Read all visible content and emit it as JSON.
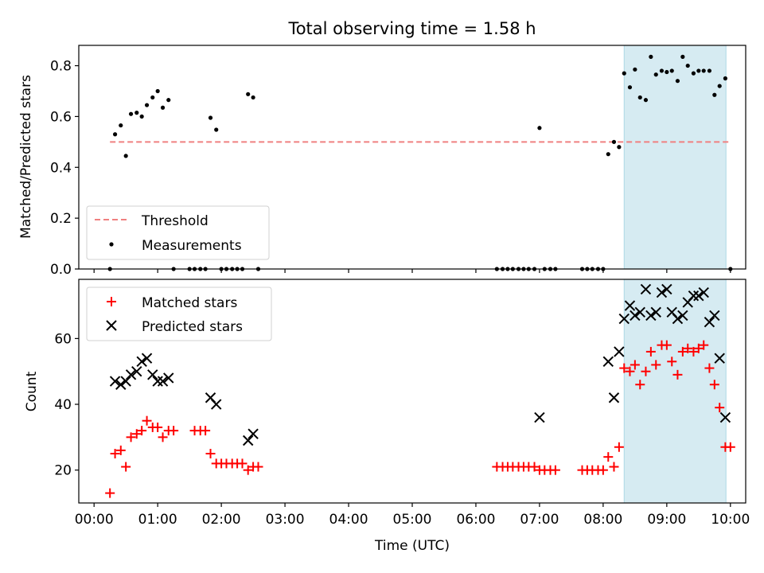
{
  "figure": {
    "title": "Total observing time = 1.58 h"
  },
  "chart_data": [
    {
      "type": "scatter",
      "panel": "top",
      "ylabel": "Matched/Predicted stars",
      "xlim_hours": [
        -0.24,
        10.24
      ],
      "ylim": [
        0,
        0.88
      ],
      "yticks": [
        0.0,
        0.2,
        0.4,
        0.6,
        0.8
      ],
      "ytick_labels": [
        "0.0",
        "0.2",
        "0.4",
        "0.6",
        "0.8"
      ],
      "grid": false,
      "legend_position": "lower-left",
      "shaded_span_hours": [
        8.33,
        9.93
      ],
      "shaded_color": "#add8e6",
      "threshold": {
        "name": "Threshold",
        "y": 0.5,
        "x_range_hours": [
          0.25,
          9.97
        ],
        "color": "#f08080"
      },
      "measurements": {
        "name": "Measurements",
        "color": "#000000",
        "points": [
          [
            0.25,
            0.0
          ],
          [
            0.33,
            0.53
          ],
          [
            0.42,
            0.565
          ],
          [
            0.5,
            0.445
          ],
          [
            0.58,
            0.61
          ],
          [
            0.67,
            0.615
          ],
          [
            0.75,
            0.6
          ],
          [
            0.83,
            0.645
          ],
          [
            0.92,
            0.675
          ],
          [
            1.0,
            0.7
          ],
          [
            1.08,
            0.635
          ],
          [
            1.17,
            0.665
          ],
          [
            1.25,
            0.0
          ],
          [
            1.5,
            0.0
          ],
          [
            1.58,
            0.0
          ],
          [
            1.67,
            0.0
          ],
          [
            1.75,
            0.0
          ],
          [
            1.83,
            0.595
          ],
          [
            1.92,
            0.548
          ],
          [
            2.0,
            0.0
          ],
          [
            2.08,
            0.0
          ],
          [
            2.17,
            0.0
          ],
          [
            2.25,
            0.0
          ],
          [
            2.33,
            0.0
          ],
          [
            2.42,
            0.688
          ],
          [
            2.5,
            0.675
          ],
          [
            2.58,
            0.0
          ],
          [
            6.33,
            0.0
          ],
          [
            6.42,
            0.0
          ],
          [
            6.5,
            0.0
          ],
          [
            6.58,
            0.0
          ],
          [
            6.67,
            0.0
          ],
          [
            6.75,
            0.0
          ],
          [
            6.83,
            0.0
          ],
          [
            6.92,
            0.0
          ],
          [
            7.0,
            0.555
          ],
          [
            7.08,
            0.0
          ],
          [
            7.17,
            0.0
          ],
          [
            7.25,
            0.0
          ],
          [
            7.67,
            0.0
          ],
          [
            7.75,
            0.0
          ],
          [
            7.83,
            0.0
          ],
          [
            7.92,
            0.0
          ],
          [
            8.0,
            0.0
          ],
          [
            8.08,
            0.452
          ],
          [
            8.17,
            0.5
          ],
          [
            8.25,
            0.48
          ],
          [
            8.33,
            0.77
          ],
          [
            8.42,
            0.715
          ],
          [
            8.5,
            0.785
          ],
          [
            8.58,
            0.675
          ],
          [
            8.67,
            0.665
          ],
          [
            8.75,
            0.835
          ],
          [
            8.83,
            0.765
          ],
          [
            8.92,
            0.78
          ],
          [
            9.0,
            0.775
          ],
          [
            9.08,
            0.78
          ],
          [
            9.17,
            0.74
          ],
          [
            9.25,
            0.835
          ],
          [
            9.33,
            0.8
          ],
          [
            9.42,
            0.77
          ],
          [
            9.5,
            0.78
          ],
          [
            9.58,
            0.78
          ],
          [
            9.67,
            0.78
          ],
          [
            9.75,
            0.685
          ],
          [
            9.83,
            0.72
          ],
          [
            9.92,
            0.75
          ],
          [
            10.0,
            0.0
          ]
        ]
      },
      "legend": [
        "Threshold",
        "Measurements"
      ]
    },
    {
      "type": "scatter",
      "panel": "bottom",
      "xlabel": "Time (UTC)",
      "ylabel": "Count",
      "xlim_hours": [
        -0.24,
        10.24
      ],
      "ylim": [
        10,
        78
      ],
      "yticks": [
        20,
        40,
        60
      ],
      "ytick_labels": [
        "20",
        "40",
        "60"
      ],
      "xticks_hours": [
        0,
        1,
        2,
        3,
        4,
        5,
        6,
        7,
        8,
        9,
        10
      ],
      "xtick_labels": [
        "00:00",
        "01:00",
        "02:00",
        "03:00",
        "04:00",
        "05:00",
        "06:00",
        "07:00",
        "08:00",
        "09:00",
        "10:00"
      ],
      "grid": false,
      "legend_position": "upper-left",
      "shaded_span_hours": [
        8.33,
        9.93
      ],
      "series": [
        {
          "name": "Matched stars",
          "marker": "plus",
          "color": "#ff0000",
          "points": [
            [
              0.25,
              13
            ],
            [
              0.33,
              25
            ],
            [
              0.42,
              26
            ],
            [
              0.5,
              21
            ],
            [
              0.58,
              30
            ],
            [
              0.67,
              31
            ],
            [
              0.75,
              32
            ],
            [
              0.83,
              35
            ],
            [
              0.92,
              33
            ],
            [
              1.0,
              33
            ],
            [
              1.08,
              30
            ],
            [
              1.17,
              32
            ],
            [
              1.25,
              32
            ],
            [
              1.58,
              32
            ],
            [
              1.67,
              32
            ],
            [
              1.75,
              32
            ],
            [
              1.83,
              25
            ],
            [
              1.92,
              22
            ],
            [
              2.0,
              22
            ],
            [
              2.08,
              22
            ],
            [
              2.17,
              22
            ],
            [
              2.25,
              22
            ],
            [
              2.33,
              22
            ],
            [
              2.42,
              20
            ],
            [
              2.5,
              21
            ],
            [
              2.58,
              21
            ],
            [
              6.33,
              21
            ],
            [
              6.42,
              21
            ],
            [
              6.5,
              21
            ],
            [
              6.58,
              21
            ],
            [
              6.67,
              21
            ],
            [
              6.75,
              21
            ],
            [
              6.83,
              21
            ],
            [
              6.92,
              21
            ],
            [
              7.0,
              20
            ],
            [
              7.08,
              20
            ],
            [
              7.17,
              20
            ],
            [
              7.25,
              20
            ],
            [
              7.67,
              20
            ],
            [
              7.75,
              20
            ],
            [
              7.83,
              20
            ],
            [
              7.92,
              20
            ],
            [
              8.0,
              20
            ],
            [
              8.08,
              24
            ],
            [
              8.17,
              21
            ],
            [
              8.25,
              27
            ],
            [
              8.33,
              51
            ],
            [
              8.42,
              50
            ],
            [
              8.5,
              52
            ],
            [
              8.58,
              46
            ],
            [
              8.67,
              50
            ],
            [
              8.75,
              56
            ],
            [
              8.83,
              52
            ],
            [
              8.92,
              58
            ],
            [
              9.0,
              58
            ],
            [
              9.08,
              53
            ],
            [
              9.17,
              49
            ],
            [
              9.25,
              56
            ],
            [
              9.33,
              57
            ],
            [
              9.42,
              56
            ],
            [
              9.5,
              57
            ],
            [
              9.58,
              58
            ],
            [
              9.67,
              51
            ],
            [
              9.75,
              46
            ],
            [
              9.83,
              39
            ],
            [
              9.92,
              27
            ],
            [
              10.0,
              27
            ]
          ]
        },
        {
          "name": "Predicted stars",
          "marker": "x",
          "color": "#000000",
          "points": [
            [
              0.33,
              47
            ],
            [
              0.42,
              46
            ],
            [
              0.5,
              47
            ],
            [
              0.58,
              49
            ],
            [
              0.67,
              50
            ],
            [
              0.75,
              53
            ],
            [
              0.83,
              54
            ],
            [
              0.92,
              49
            ],
            [
              1.0,
              47
            ],
            [
              1.08,
              47
            ],
            [
              1.17,
              48
            ],
            [
              1.83,
              42
            ],
            [
              1.92,
              40
            ],
            [
              2.42,
              29
            ],
            [
              2.5,
              31
            ],
            [
              7.0,
              36
            ],
            [
              8.08,
              53
            ],
            [
              8.17,
              42
            ],
            [
              8.25,
              56
            ],
            [
              8.33,
              66
            ],
            [
              8.42,
              70
            ],
            [
              8.5,
              67
            ],
            [
              8.58,
              68
            ],
            [
              8.67,
              75
            ],
            [
              8.75,
              67
            ],
            [
              8.83,
              68
            ],
            [
              8.92,
              74
            ],
            [
              9.0,
              75
            ],
            [
              9.08,
              68
            ],
            [
              9.17,
              66
            ],
            [
              9.25,
              67
            ],
            [
              9.33,
              71
            ],
            [
              9.42,
              73
            ],
            [
              9.5,
              73
            ],
            [
              9.58,
              74
            ],
            [
              9.67,
              65
            ],
            [
              9.75,
              67
            ],
            [
              9.83,
              54
            ],
            [
              9.92,
              36
            ]
          ]
        }
      ],
      "legend": [
        "Matched stars",
        "Predicted stars"
      ]
    }
  ]
}
